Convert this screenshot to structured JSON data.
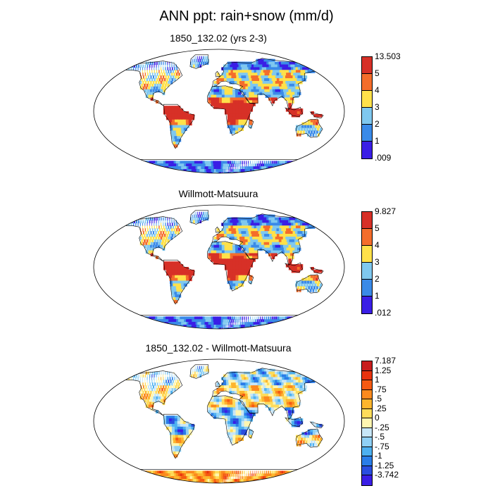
{
  "title": "ANN ppt: rain+snow (mm/d)",
  "panels": [
    {
      "id": "model",
      "title": "1850_132.02 (yrs 2-3)",
      "colorbar": {
        "labels": [
          "13.503",
          "5",
          "4",
          "3",
          "2",
          "1",
          ".009"
        ],
        "colors": [
          "#d73027",
          "#f46d2b",
          "#ffe14a",
          "#7fc8ef",
          "#3a8ae8",
          "#3a1ee6"
        ]
      }
    },
    {
      "id": "obs",
      "title": "Willmott-Matsuura",
      "colorbar": {
        "labels": [
          "9.827",
          "5",
          "4",
          "3",
          "2",
          "1",
          ".012"
        ],
        "colors": [
          "#d73027",
          "#f46d2b",
          "#ffe14a",
          "#7fc8ef",
          "#3a8ae8",
          "#3a1ee6"
        ]
      }
    },
    {
      "id": "diff",
      "title": "1850_132.02 - Willmott-Matsuura",
      "colorbar": {
        "labels": [
          "7.187",
          "1.25",
          "1",
          ".75",
          ".5",
          ".25",
          "0",
          "-.25",
          "-.5",
          "-.75",
          "-1",
          "-1.25",
          "-3.742"
        ],
        "colors": [
          "#c81e1e",
          "#e8330f",
          "#f55a12",
          "#fb8a1e",
          "#fdb52e",
          "#fedc5a",
          "#fff6b0",
          "#c7e6f7",
          "#8fd0f5",
          "#4db0f0",
          "#2a7de8",
          "#2a4ee0",
          "#3a1ee6"
        ]
      }
    }
  ]
}
